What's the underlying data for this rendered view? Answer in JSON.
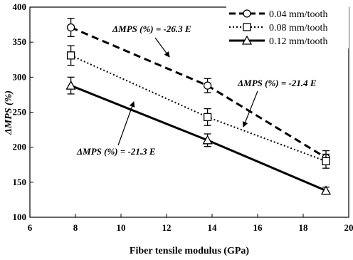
{
  "chart_data": {
    "type": "line",
    "title": "",
    "xlabel": "Fiber tensile modulus (GPa)",
    "ylabel": "ΔMPS (%)",
    "xlim": [
      6,
      20
    ],
    "ylim": [
      100,
      400
    ],
    "xticks": [
      6,
      8,
      10,
      12,
      14,
      16,
      18,
      20
    ],
    "yticks": [
      100,
      150,
      200,
      250,
      300,
      350,
      400
    ],
    "grid": false,
    "legend_position": "top-right",
    "series": [
      {
        "name": "0.04 mm/tooth",
        "marker": "circle",
        "line_style": "dashed",
        "x": [
          7.8,
          13.8,
          19.0
        ],
        "y": [
          371,
          288,
          185
        ],
        "error": [
          13,
          10,
          10
        ]
      },
      {
        "name": "0.08 mm/tooth",
        "marker": "square",
        "line_style": "dotted",
        "x": [
          7.8,
          13.8,
          19.0
        ],
        "y": [
          331,
          243,
          180
        ],
        "error": [
          14,
          12,
          10
        ]
      },
      {
        "name": "0.12 mm/tooth",
        "marker": "triangle",
        "line_style": "solid",
        "x": [
          7.8,
          13.8,
          19.0
        ],
        "y": [
          288,
          210,
          138
        ],
        "error": [
          12,
          9,
          5
        ]
      }
    ],
    "annotations": [
      {
        "text": "ΔMPS (%)  = -26.3 E",
        "target_series": "0.04 mm/tooth"
      },
      {
        "text": "ΔMPS (%)  = -21.4 E",
        "target_series": "0.08 mm/tooth"
      },
      {
        "text": "ΔMPS (%)  = -21.3 E",
        "target_series": "0.12 mm/tooth"
      }
    ]
  }
}
